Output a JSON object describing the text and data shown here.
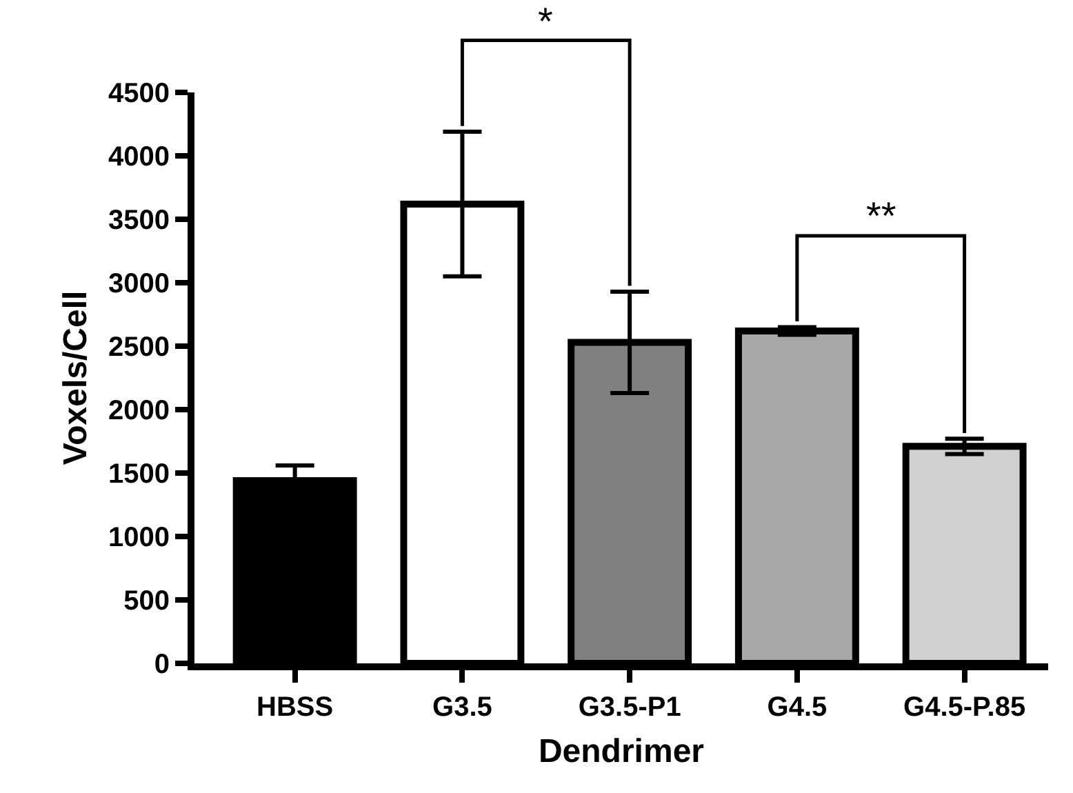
{
  "chart_data": {
    "type": "bar",
    "xlabel": "Dendrimer",
    "ylabel": "Voxels/Cell",
    "categories": [
      "HBSS",
      "G3.5",
      "G3.5-P1",
      "G4.5",
      "G4.5-P.85"
    ],
    "values": [
      1440,
      3620,
      2530,
      2620,
      1710
    ],
    "errors": [
      120,
      570,
      400,
      30,
      60
    ],
    "colors": [
      "#000000",
      "#ffffff",
      "#808080",
      "#a8a8aa",
      "#d0d0d0"
    ],
    "ylim": [
      0,
      4500
    ],
    "yticks": [
      0,
      500,
      1000,
      1500,
      2000,
      2500,
      3000,
      3500,
      4000,
      4500
    ],
    "grid": false,
    "legend": false,
    "annotations": [
      "*",
      "**"
    ]
  }
}
